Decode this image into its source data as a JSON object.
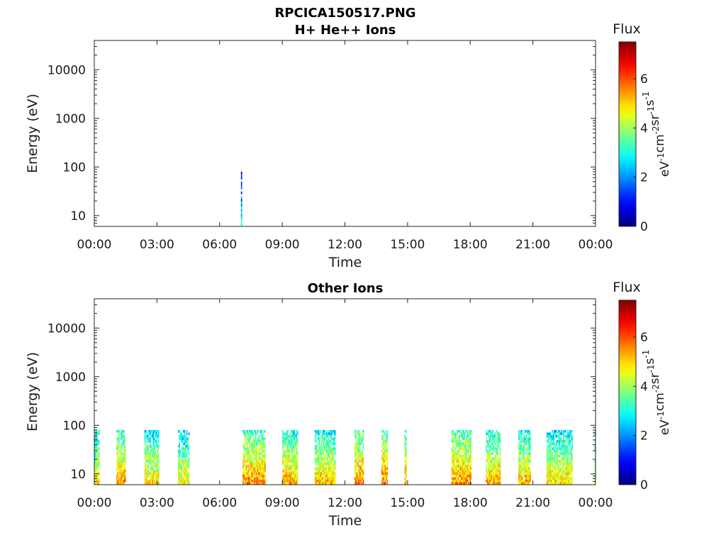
{
  "figure_title": "RPCICA150517.PNG",
  "colorbar": {
    "title": "Flux",
    "label_base": [
      "eV",
      "cm",
      "sr",
      "s"
    ],
    "label_exp": [
      "-1",
      "-2",
      "-1",
      "-1"
    ],
    "range": [
      0,
      7.5
    ],
    "ticks": [
      "0",
      "2",
      "4",
      "6"
    ],
    "colormap": "jet"
  },
  "chart_data": [
    {
      "type": "heatmap",
      "title": "H+ He++ Ions",
      "xlabel": "Time",
      "ylabel": "Energy (eV)",
      "x_ticks": [
        "00:00",
        "03:00",
        "06:00",
        "09:00",
        "12:00",
        "15:00",
        "18:00",
        "21:00",
        "00:00"
      ],
      "xlim_hours": [
        0,
        24
      ],
      "y_scale": "log",
      "ylim": [
        6,
        40000
      ],
      "y_ticks": [
        "10",
        "100",
        "1000",
        "10000"
      ],
      "z_range": [
        0,
        7.5
      ],
      "activity": [
        {
          "start_hour": 7.02,
          "end_hour": 7.06,
          "e_max": 80,
          "flux_level": 3.0
        }
      ]
    },
    {
      "type": "heatmap",
      "title": "Other Ions",
      "xlabel": "Time",
      "ylabel": "Energy (eV)",
      "x_ticks": [
        "00:00",
        "03:00",
        "06:00",
        "09:00",
        "12:00",
        "15:00",
        "18:00",
        "21:00",
        "00:00"
      ],
      "xlim_hours": [
        0,
        24
      ],
      "y_scale": "log",
      "ylim": [
        6,
        40000
      ],
      "y_ticks": [
        "10",
        "100",
        "1000",
        "10000"
      ],
      "z_range": [
        0,
        7.5
      ],
      "activity": [
        {
          "start_hour": 0.0,
          "end_hour": 0.25,
          "e_max": 80,
          "flux_level": 5.0
        },
        {
          "start_hour": 1.05,
          "end_hour": 1.5,
          "e_max": 80,
          "flux_level": 5.5
        },
        {
          "start_hour": 2.4,
          "end_hour": 3.1,
          "e_max": 80,
          "flux_level": 5.0
        },
        {
          "start_hour": 4.0,
          "end_hour": 4.55,
          "e_max": 80,
          "flux_level": 4.8
        },
        {
          "start_hour": 7.1,
          "end_hour": 8.2,
          "e_max": 80,
          "flux_level": 5.6
        },
        {
          "start_hour": 9.0,
          "end_hour": 9.75,
          "e_max": 80,
          "flux_level": 5.3
        },
        {
          "start_hour": 10.55,
          "end_hour": 11.55,
          "e_max": 80,
          "flux_level": 5.2
        },
        {
          "start_hour": 12.45,
          "end_hour": 12.9,
          "e_max": 80,
          "flux_level": 5.6
        },
        {
          "start_hour": 13.75,
          "end_hour": 14.05,
          "e_max": 80,
          "flux_level": 5.8
        },
        {
          "start_hour": 14.85,
          "end_hour": 14.95,
          "e_max": 80,
          "flux_level": 5.5
        },
        {
          "start_hour": 17.1,
          "end_hour": 18.05,
          "e_max": 80,
          "flux_level": 5.6
        },
        {
          "start_hour": 18.75,
          "end_hour": 19.45,
          "e_max": 80,
          "flux_level": 5.3
        },
        {
          "start_hour": 20.3,
          "end_hour": 20.9,
          "e_max": 80,
          "flux_level": 5.2
        },
        {
          "start_hour": 21.65,
          "end_hour": 22.9,
          "e_max": 80,
          "flux_level": 5.0
        },
        {
          "start_hour": 23.95,
          "end_hour": 24.0,
          "e_max": 80,
          "flux_level": 4.5
        }
      ]
    }
  ]
}
